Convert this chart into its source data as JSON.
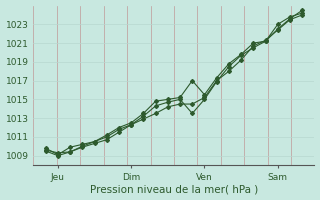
{
  "xlabel": "Pression niveau de la mer( hPa )",
  "bg_color": "#c8e8e0",
  "line_color": "#2d5a2d",
  "ylim": [
    1008.0,
    1025.0
  ],
  "yticks": [
    1009,
    1011,
    1013,
    1015,
    1017,
    1019,
    1021,
    1023
  ],
  "xtick_labels": [
    "Jeu",
    "Dim",
    "Ven",
    "Sam"
  ],
  "xtick_positions": [
    1,
    4,
    7,
    10
  ],
  "xlim": [
    0,
    11.5
  ],
  "n_vgrid": 12,
  "line1_x": [
    0.5,
    1.0,
    1.5,
    2.0,
    2.5,
    3.0,
    3.5,
    4.0,
    4.5,
    5.0,
    5.5,
    6.0,
    6.5,
    7.0,
    7.5,
    8.0,
    8.5,
    9.0,
    9.5,
    10.0,
    10.5,
    11.0
  ],
  "line1_y": [
    1009.6,
    1009.3,
    1009.4,
    1009.9,
    1010.3,
    1010.7,
    1011.5,
    1012.3,
    1012.9,
    1013.5,
    1014.2,
    1014.5,
    1014.5,
    1015.2,
    1017.0,
    1018.0,
    1019.2,
    1020.7,
    1021.3,
    1022.4,
    1023.5,
    1024.0
  ],
  "line2_x": [
    0.5,
    1.0,
    1.5,
    2.0,
    2.5,
    3.0,
    3.5,
    4.0,
    4.5,
    5.0,
    5.5,
    6.0,
    6.5,
    7.0,
    7.5,
    8.0,
    8.5,
    9.0,
    9.5,
    10.0,
    10.5,
    11.0
  ],
  "line2_y": [
    1009.5,
    1009.0,
    1009.4,
    1010.0,
    1010.5,
    1011.0,
    1011.8,
    1012.3,
    1013.2,
    1014.3,
    1014.7,
    1015.0,
    1013.5,
    1015.0,
    1016.9,
    1018.5,
    1019.7,
    1020.5,
    1021.2,
    1022.5,
    1023.6,
    1024.5
  ],
  "line3_x": [
    0.5,
    1.0,
    1.5,
    2.0,
    2.5,
    3.0,
    3.5,
    4.0,
    4.5,
    5.0,
    5.5,
    6.0,
    6.5,
    7.0,
    7.5,
    8.0,
    8.5,
    9.0,
    9.5,
    10.0,
    10.5,
    11.0
  ],
  "line3_y": [
    1009.8,
    1009.1,
    1009.9,
    1010.2,
    1010.5,
    1011.2,
    1012.0,
    1012.5,
    1013.5,
    1014.8,
    1015.0,
    1015.2,
    1017.0,
    1015.5,
    1017.3,
    1018.8,
    1019.8,
    1021.0,
    1021.2,
    1023.0,
    1023.8,
    1024.2
  ]
}
